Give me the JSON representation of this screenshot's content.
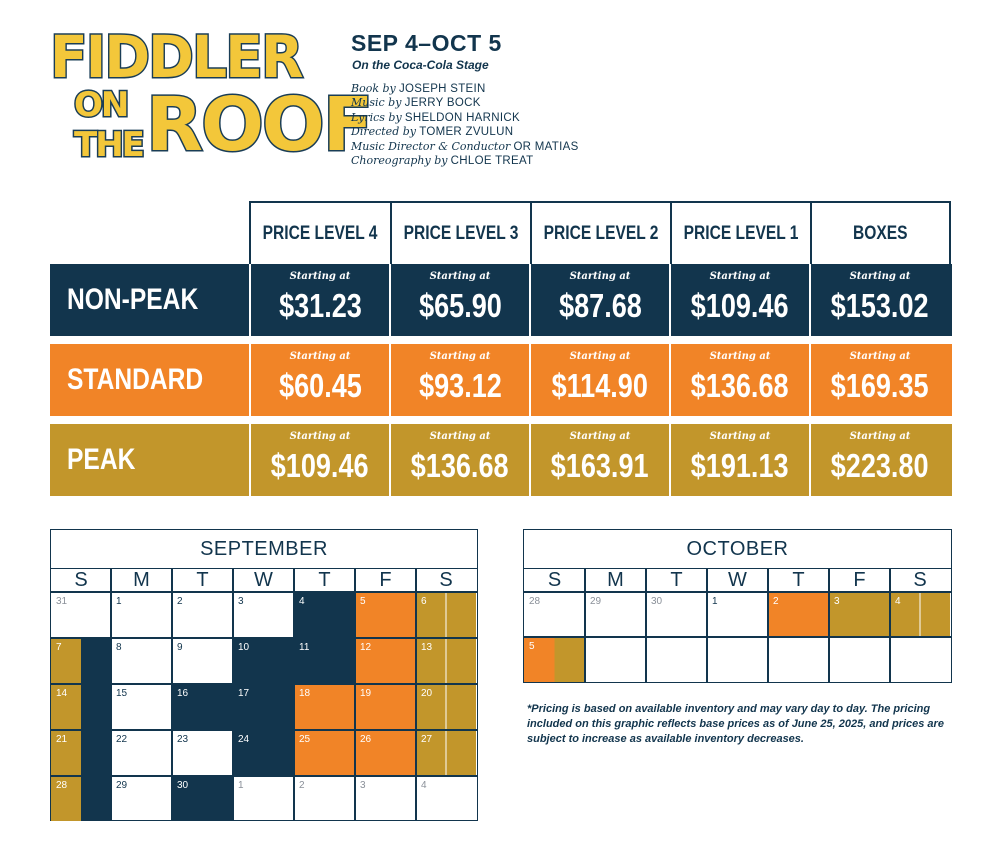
{
  "logo": {
    "line1": "FIDDLER",
    "line2a": "ON",
    "line2b": "THE",
    "line3": "ROOF"
  },
  "header": {
    "dates": "SEP 4–OCT 5",
    "stage": "On the Coca-Cola Stage",
    "credits": [
      {
        "role": "Book by",
        "name": "JOSEPH STEIN"
      },
      {
        "role": "Music by",
        "name": "JERRY BOCK"
      },
      {
        "role": "Lyrics by",
        "name": "SHELDON HARNICK"
      },
      {
        "role": "Directed by",
        "name": "TOMER ZVULUN"
      },
      {
        "role": "Music Director & Conductor",
        "name": "OR MATIAS"
      },
      {
        "role": "Choreography by",
        "name": "CHLOE TREAT"
      }
    ]
  },
  "pricing": {
    "columns": [
      "PRICE LEVEL 4",
      "PRICE LEVEL 3",
      "PRICE LEVEL 2",
      "PRICE LEVEL 1",
      "BOXES"
    ],
    "starting_label": "Starting at",
    "tiers": [
      {
        "name": "NON-PEAK",
        "color": "#12354d",
        "prices": [
          "$31.23",
          "$65.90",
          "$87.68",
          "$109.46",
          "$153.02"
        ]
      },
      {
        "name": "STANDARD",
        "color": "#f18427",
        "prices": [
          "$60.45",
          "$93.12",
          "$114.90",
          "$136.68",
          "$169.35"
        ]
      },
      {
        "name": "PEAK",
        "color": "#c2962b",
        "prices": [
          "$109.46",
          "$136.68",
          "$163.91",
          "$191.13",
          "$223.80"
        ]
      }
    ]
  },
  "calendars": [
    {
      "month": "SEPTEMBER",
      "weekdays": [
        "S",
        "M",
        "T",
        "W",
        "T",
        "F",
        "S"
      ],
      "weeks": [
        [
          [
            "31",
            "muted",
            ""
          ],
          [
            "1",
            "",
            ""
          ],
          [
            "2",
            "",
            ""
          ],
          [
            "3",
            "",
            ""
          ],
          [
            "4",
            "",
            "navy"
          ],
          [
            "5",
            "",
            "orange"
          ],
          [
            "6",
            "",
            "gold-strip"
          ]
        ],
        [
          [
            "7",
            "",
            "gold-navy"
          ],
          [
            "8",
            "",
            ""
          ],
          [
            "9",
            "",
            ""
          ],
          [
            "10",
            "",
            "navy"
          ],
          [
            "11",
            "",
            "navy"
          ],
          [
            "12",
            "",
            "orange"
          ],
          [
            "13",
            "",
            "gold-strip"
          ]
        ],
        [
          [
            "14",
            "",
            "gold-navy"
          ],
          [
            "15",
            "",
            ""
          ],
          [
            "16",
            "",
            "navy"
          ],
          [
            "17",
            "",
            "navy"
          ],
          [
            "18",
            "",
            "orange"
          ],
          [
            "19",
            "",
            "orange"
          ],
          [
            "20",
            "",
            "gold-strip"
          ]
        ],
        [
          [
            "21",
            "",
            "gold-navy"
          ],
          [
            "22",
            "",
            ""
          ],
          [
            "23",
            "",
            ""
          ],
          [
            "24",
            "",
            "navy"
          ],
          [
            "25",
            "",
            "orange"
          ],
          [
            "26",
            "",
            "orange"
          ],
          [
            "27",
            "",
            "gold-strip"
          ]
        ],
        [
          [
            "28",
            "",
            "gold-navy"
          ],
          [
            "29",
            "",
            ""
          ],
          [
            "30",
            "",
            "navy"
          ],
          [
            "1",
            "muted",
            ""
          ],
          [
            "2",
            "muted",
            ""
          ],
          [
            "3",
            "muted",
            ""
          ],
          [
            "4",
            "muted",
            ""
          ]
        ]
      ]
    },
    {
      "month": "OCTOBER",
      "weekdays": [
        "S",
        "M",
        "T",
        "W",
        "T",
        "F",
        "S"
      ],
      "weeks": [
        [
          [
            "28",
            "muted",
            ""
          ],
          [
            "29",
            "muted",
            ""
          ],
          [
            "30",
            "muted",
            ""
          ],
          [
            "1",
            "",
            ""
          ],
          [
            "2",
            "",
            "orange"
          ],
          [
            "3",
            "",
            "gold"
          ],
          [
            "4",
            "",
            "gold-strip"
          ]
        ],
        [
          [
            "5",
            "",
            "orange-gold"
          ],
          [
            "",
            "",
            ""
          ],
          [
            "",
            "",
            ""
          ],
          [
            "",
            "",
            ""
          ],
          [
            "",
            "",
            ""
          ],
          [
            "",
            "",
            ""
          ],
          [
            "",
            "",
            ""
          ]
        ]
      ]
    }
  ],
  "colors": {
    "navy": "#12354d",
    "orange": "#f18427",
    "gold": "#c2962b"
  },
  "disclaimer": "*Pricing is based on available inventory and may vary day to day. The pricing included on this graphic reflects base prices as of June 25, 2025, and prices are subject to increase as available inventory decreases."
}
